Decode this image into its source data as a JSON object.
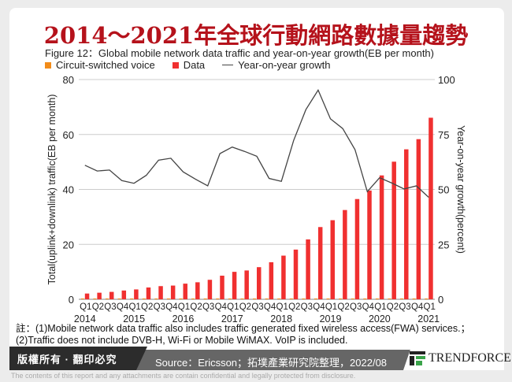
{
  "header": {
    "title": "2014～2021年全球行動網路數據量趨勢"
  },
  "footer": {
    "note_line1": "註：(1)Mobile network data traffic also includes traffic generated fixed wireless access(FWA) services.；",
    "note_line2": "(2)Traffic does not include DVB-H, Wi-Fi or Mobile WiMAX. VoIP is included.",
    "rights": "版權所有 · 翻印必究",
    "source": "Source：Ericsson；拓墣產業研究院整理，2022/08",
    "brand": "TRENDFORCE",
    "disclaimer": "The contents of this report and any attachments are contain confidential and legally protected from disclosure."
  },
  "colors": {
    "voice": "#f28c1a",
    "data": "#f03030",
    "growth": "#444444",
    "title": "#b5121b"
  },
  "chart_data": {
    "type": "bar",
    "title": "Figure 12：Global mobile network data traffic and year-on-year growth(EB per month)",
    "ylabel": "Total(uplink+downlink) traffic(EB per month)",
    "y2label": "Year-on-year growth(percent)",
    "ylim": [
      0,
      80
    ],
    "yticks": [
      0,
      20,
      40,
      60,
      80
    ],
    "y2lim": [
      0,
      100
    ],
    "y2ticks": [
      0,
      25,
      50,
      75,
      100
    ],
    "grid": true,
    "legend_position": "top-left",
    "quarter_labels": [
      "Q1",
      "Q2",
      "Q3",
      "Q4",
      "Q1",
      "Q2",
      "Q3",
      "Q4",
      "Q1",
      "Q2",
      "Q3",
      "Q4",
      "Q1",
      "Q2",
      "Q3",
      "Q4",
      "Q1",
      "Q2",
      "Q3",
      "Q4",
      "Q1",
      "Q2",
      "Q3",
      "Q4",
      "Q1",
      "Q2",
      "Q3",
      "Q4",
      "Q1"
    ],
    "years": [
      "2014",
      "2015",
      "2016",
      "2017",
      "2018",
      "2019",
      "2020",
      "2021"
    ],
    "series": [
      {
        "name": "Circuit-switched voice",
        "type": "bar",
        "axis": "left",
        "values": [
          0.3,
          0.3,
          0.3,
          0.3,
          0.3,
          0.3,
          0.3,
          0.3,
          0.3,
          0.3,
          0.3,
          0.3,
          0.3,
          0.3,
          0.3,
          0.3,
          0.3,
          0.3,
          0.3,
          0.3,
          0.3,
          0.3,
          0.3,
          0.3,
          0.3,
          0.3,
          0.3,
          0.3,
          0.3
        ]
      },
      {
        "name": "Data",
        "type": "bar",
        "axis": "left",
        "values": [
          2.1,
          2.4,
          2.7,
          3.2,
          3.6,
          4.3,
          4.8,
          5.0,
          5.7,
          6.2,
          7.1,
          8.6,
          10.0,
          10.5,
          11.7,
          13.5,
          15.9,
          18.1,
          21.8,
          26.3,
          28.8,
          32.5,
          36.5,
          39.6,
          45.1,
          50.1,
          54.6,
          58.3,
          66.1
        ]
      },
      {
        "name": "Year-on-year growth",
        "type": "line",
        "axis": "right",
        "values": [
          61,
          58.4,
          58.8,
          54,
          52.8,
          56.4,
          63.3,
          64.2,
          58,
          54.7,
          51.6,
          66.3,
          69.3,
          67.3,
          65.1,
          55,
          53.7,
          72.3,
          86.3,
          95.2,
          82.1,
          77.7,
          68.1,
          49,
          55.3,
          52.9,
          50.2,
          51.6,
          46.4
        ]
      }
    ]
  }
}
